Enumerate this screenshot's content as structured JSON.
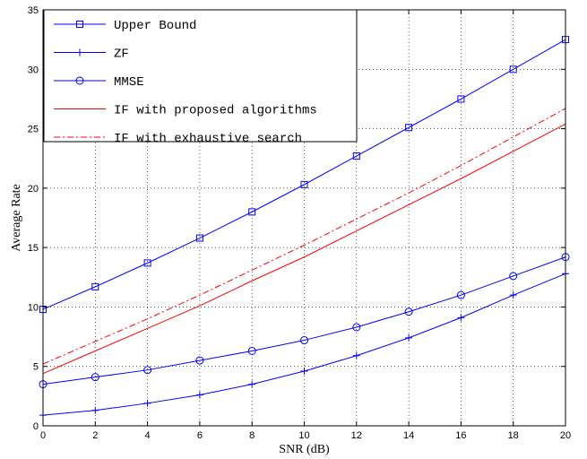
{
  "chart_data": {
    "type": "line",
    "title": "",
    "xlabel": "SNR (dB)",
    "ylabel": "Average Rate",
    "xlim": [
      0,
      20
    ],
    "ylim": [
      0,
      35
    ],
    "xticks": [
      0,
      2,
      4,
      6,
      8,
      10,
      12,
      14,
      16,
      18,
      20
    ],
    "yticks": [
      0,
      5,
      10,
      15,
      20,
      25,
      30,
      35
    ],
    "grid": true,
    "legend_position": "top-left",
    "x": [
      0,
      2,
      4,
      6,
      8,
      10,
      12,
      14,
      16,
      18,
      20
    ],
    "series": [
      {
        "name": "Upper Bound",
        "color": "#0000ff",
        "dash": "solid",
        "marker": "square",
        "values": [
          9.8,
          11.7,
          13.7,
          15.8,
          18.0,
          20.3,
          22.7,
          25.1,
          27.5,
          30.0,
          32.5
        ]
      },
      {
        "name": "ZF",
        "color": "#0000ff",
        "dash": "solid",
        "marker": "plus",
        "values": [
          0.9,
          1.3,
          1.9,
          2.6,
          3.5,
          4.6,
          5.9,
          7.4,
          9.1,
          11.0,
          12.8
        ]
      },
      {
        "name": "MMSE",
        "color": "#0000ff",
        "dash": "solid",
        "marker": "circle",
        "values": [
          3.5,
          4.1,
          4.7,
          5.5,
          6.3,
          7.2,
          8.3,
          9.6,
          11.0,
          12.6,
          14.2
        ]
      },
      {
        "name": "IF with proposed algorithms",
        "color": "#ff0000",
        "dash": "solid",
        "marker": "none",
        "values": [
          4.4,
          6.3,
          8.2,
          10.1,
          12.2,
          14.2,
          16.4,
          18.6,
          20.8,
          23.1,
          25.4
        ]
      },
      {
        "name": "IF with exhaustive search",
        "color": "#ff0000",
        "dash": "dashdot",
        "marker": "none",
        "values": [
          5.2,
          7.1,
          9.0,
          11.0,
          13.1,
          15.2,
          17.4,
          19.6,
          21.9,
          24.3,
          26.7
        ]
      }
    ]
  }
}
